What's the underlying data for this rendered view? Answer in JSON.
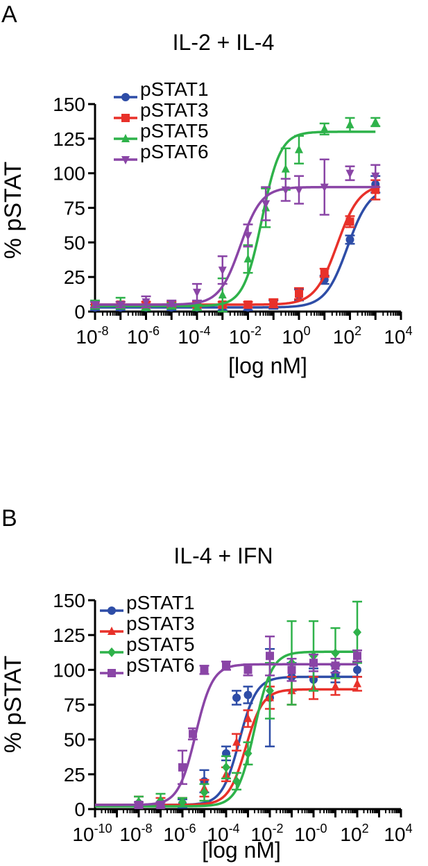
{
  "colors": {
    "pSTAT1": "#2e4da7",
    "pSTAT3": "#e8312a",
    "pSTAT5": "#2eb24a",
    "pSTAT6": "#8a45a6"
  },
  "chart_data": [
    {
      "panel": "A",
      "type": "scatter",
      "title": "IL-2 + IL-4",
      "xlabel": "[log nM]",
      "ylabel": "% pSTAT",
      "xscale": "log",
      "xlim": [
        1e-08,
        10000
      ],
      "ylim": [
        0,
        150
      ],
      "xtick_labels": [
        {
          "base": "10",
          "exp": "-8"
        },
        {
          "base": "10",
          "exp": "-6"
        },
        {
          "base": "10",
          "exp": "-4"
        },
        {
          "base": "10",
          "exp": "-2"
        },
        {
          "base": "10",
          "exp": "0"
        },
        {
          "base": "10",
          "exp": "2"
        },
        {
          "base": "10",
          "exp": "4"
        }
      ],
      "ytick_labels": [
        "0",
        "25",
        "50",
        "75",
        "100",
        "125",
        "150"
      ],
      "legend_position": "top-left",
      "series": [
        {
          "name": "pSTAT1",
          "marker": "circle",
          "x": [
            1e-08,
            1e-07,
            1e-06,
            1e-05,
            0.0001,
            0.001,
            0.01,
            0.1,
            1,
            10,
            100,
            1000
          ],
          "y": [
            3,
            3,
            3,
            3,
            3,
            3,
            3,
            5,
            12,
            23,
            52,
            92
          ],
          "err": [
            2,
            2,
            2,
            2,
            2,
            2,
            2,
            3,
            4,
            3,
            3,
            6
          ],
          "fit": {
            "bottom": 3,
            "top": 90,
            "logEC50": 1.9,
            "hill": 1.0
          }
        },
        {
          "name": "pSTAT3",
          "marker": "square",
          "x": [
            1e-08,
            1e-07,
            1e-06,
            1e-05,
            0.0001,
            0.001,
            0.01,
            0.1,
            1,
            10,
            100,
            1000
          ],
          "y": [
            5,
            5,
            5,
            5,
            5,
            5,
            5,
            6,
            13,
            28,
            65,
            88
          ],
          "err": [
            2,
            2,
            2,
            2,
            2,
            2,
            2,
            3,
            4,
            3,
            4,
            7
          ],
          "fit": {
            "bottom": 5,
            "top": 92,
            "logEC50": 1.5,
            "hill": 1.0
          }
        },
        {
          "name": "pSTAT5",
          "marker": "triangle",
          "x": [
            1e-08,
            1e-07,
            1e-06,
            1e-05,
            0.0001,
            0.001,
            0.01,
            0.05,
            0.3,
            1,
            10,
            100,
            1000
          ],
          "y": [
            5,
            6,
            3,
            4,
            3,
            12,
            38,
            75,
            103,
            117,
            132,
            135,
            137
          ],
          "err": [
            3,
            4,
            2,
            2,
            2,
            12,
            10,
            14,
            15,
            10,
            4,
            5,
            3
          ],
          "fit": {
            "bottom": 4,
            "top": 130,
            "logEC50": -1.45,
            "hill": 1.2
          }
        },
        {
          "name": "pSTAT6",
          "marker": "triangle-down",
          "x": [
            1e-08,
            1e-07,
            1e-06,
            1e-05,
            0.0001,
            0.001,
            0.01,
            0.05,
            0.3,
            1,
            10,
            100,
            1000
          ],
          "y": [
            5,
            5,
            7,
            6,
            14,
            30,
            55,
            78,
            88,
            88,
            90,
            100,
            98
          ],
          "err": [
            2,
            2,
            4,
            2,
            6,
            10,
            8,
            12,
            8,
            10,
            20,
            5,
            8
          ],
          "fit": {
            "bottom": 5,
            "top": 90,
            "logEC50": -2.3,
            "hill": 1.05
          }
        }
      ]
    },
    {
      "panel": "B",
      "type": "scatter",
      "title": "IL-4 + IFN",
      "xlabel": "[log nM]",
      "ylabel": "% pSTAT",
      "xscale": "log",
      "xlim": [
        1e-10,
        10000
      ],
      "ylim": [
        0,
        150
      ],
      "xtick_labels": [
        {
          "base": "10",
          "exp": "-10"
        },
        {
          "base": "10",
          "exp": "-8"
        },
        {
          "base": "10",
          "exp": "-6"
        },
        {
          "base": "10",
          "exp": "-4"
        },
        {
          "base": "10",
          "exp": "-2"
        },
        {
          "base": "10",
          "exp": "-0"
        },
        {
          "base": "10",
          "exp": "2"
        },
        {
          "base": "10",
          "exp": "4"
        }
      ],
      "ytick_labels": [
        "0",
        "25",
        "50",
        "75",
        "100",
        "125",
        "150"
      ],
      "legend_position": "top-left",
      "series": [
        {
          "name": "pSTAT1",
          "marker": "circle",
          "x": [
            1e-08,
            1e-07,
            1e-06,
            1e-05,
            0.0001,
            0.0003,
            0.001,
            0.01,
            0.1,
            1,
            10,
            100
          ],
          "y": [
            3,
            3,
            4,
            20,
            40,
            80,
            82,
            80,
            95,
            93,
            97,
            100
          ],
          "err": [
            2,
            2,
            3,
            8,
            5,
            5,
            6,
            35,
            10,
            8,
            6,
            5
          ],
          "fit": {
            "bottom": 3,
            "top": 95,
            "logEC50": -3.4,
            "hill": 1.1
          }
        },
        {
          "name": "pSTAT3",
          "marker": "triangle",
          "x": [
            1e-08,
            1e-07,
            1e-06,
            1e-05,
            0.0001,
            0.0003,
            0.001,
            0.01,
            0.1,
            1,
            10,
            100
          ],
          "y": [
            5,
            5,
            5,
            15,
            25,
            48,
            65,
            80,
            85,
            87,
            88,
            90
          ],
          "err": [
            4,
            3,
            3,
            6,
            5,
            6,
            6,
            8,
            10,
            8,
            6,
            5
          ],
          "fit": {
            "bottom": 3,
            "top": 86,
            "logEC50": -3.1,
            "hill": 1.1
          }
        },
        {
          "name": "pSTAT5",
          "marker": "diamond",
          "x": [
            1e-08,
            1e-07,
            1e-06,
            1e-05,
            0.0001,
            0.0003,
            0.001,
            0.01,
            0.1,
            1,
            10,
            100
          ],
          "y": [
            5,
            6,
            5,
            12,
            30,
            20,
            40,
            85,
            105,
            110,
            112,
            127
          ],
          "err": [
            4,
            5,
            3,
            6,
            8,
            6,
            8,
            20,
            30,
            25,
            18,
            22
          ],
          "fit": {
            "bottom": 2,
            "top": 113,
            "logEC50": -2.7,
            "hill": 1.1
          }
        },
        {
          "name": "pSTAT6",
          "marker": "square",
          "x": [
            1e-08,
            1e-07,
            1e-06,
            3e-06,
            1e-05,
            0.0001,
            0.001,
            0.01,
            0.1,
            1,
            10,
            100
          ],
          "y": [
            3,
            3,
            30,
            54,
            100,
            103,
            100,
            110,
            100,
            105,
            103,
            110
          ],
          "err": [
            2,
            2,
            12,
            4,
            3,
            3,
            4,
            14,
            8,
            6,
            5,
            4
          ],
          "fit": {
            "bottom": 3,
            "top": 104,
            "logEC50": -5.4,
            "hill": 1.1
          }
        }
      ]
    }
  ]
}
